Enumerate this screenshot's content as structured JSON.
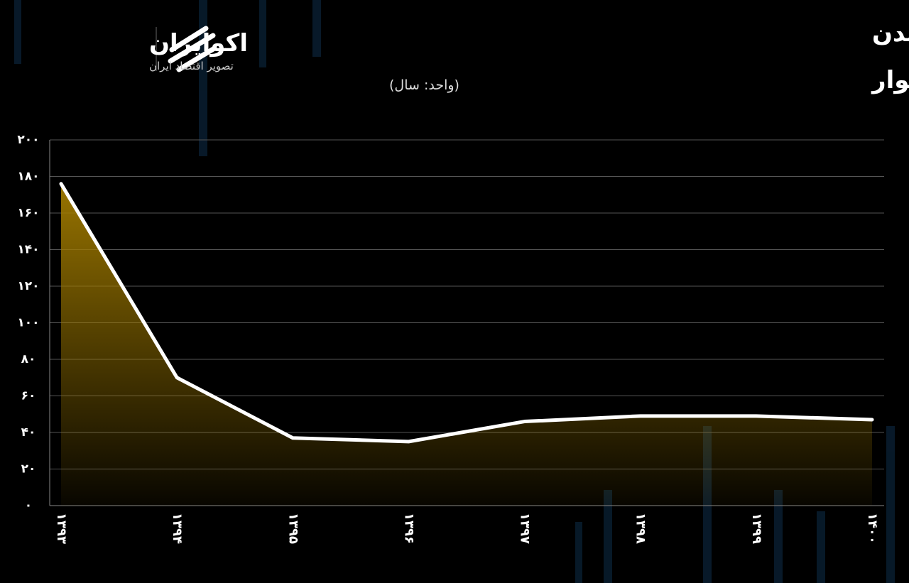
{
  "logo": {
    "name": "اکوایران",
    "tagline": "تصویر اقتصاد ایران"
  },
  "chart_data": {
    "type": "line",
    "title": "سال‌های مورد انتظار برای خانه‌دارشدن",
    "subtitle": "با کسر تمام‌هزینه‌ها از درآمد خانوار",
    "unit_note": "(واحد: سال)",
    "categories": [
      "۱۳۹۳",
      "۱۳۹۴",
      "۱۳۹۵",
      "۱۳۹۶",
      "۱۳۹۷",
      "۱۳۹۸",
      "۱۳۹۹",
      "۱۴۰۰"
    ],
    "values": [
      176,
      70,
      37,
      35,
      46,
      49,
      49,
      47
    ],
    "color": "#ffffff",
    "fill_color": "#a07a00",
    "ylim": [
      0,
      200
    ],
    "yticks": [
      {
        "value": 0,
        "label": "۰"
      },
      {
        "value": 20,
        "label": "۲۰"
      },
      {
        "value": 40,
        "label": "۴۰"
      },
      {
        "value": 60,
        "label": "۶۰"
      },
      {
        "value": 80,
        "label": "۸۰"
      },
      {
        "value": 100,
        "label": "۱۰۰"
      },
      {
        "value": 120,
        "label": "۱۲۰"
      },
      {
        "value": 140,
        "label": "۱۴۰"
      },
      {
        "value": 160,
        "label": "۱۶۰"
      },
      {
        "value": 180,
        "label": "۱۸۰"
      },
      {
        "value": 200,
        "label": "۲۰۰"
      }
    ],
    "grid": true
  }
}
